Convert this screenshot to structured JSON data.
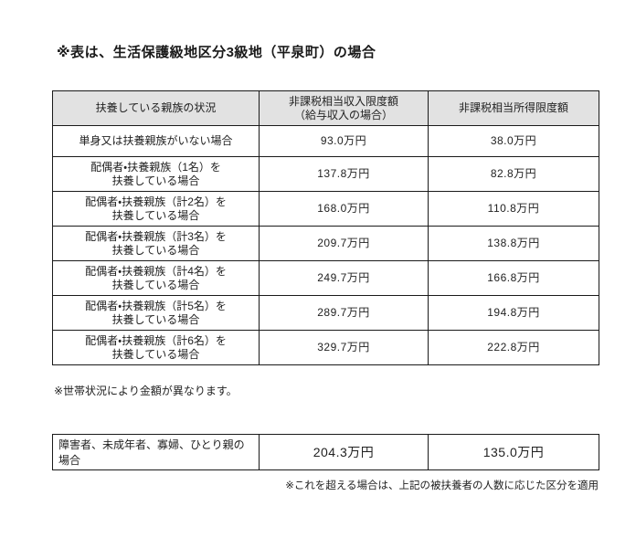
{
  "page": {
    "title": "※表は、生活保護級地区分3級地（平泉町）の場合",
    "note_household": "※世帯状況により金額が異なります。",
    "note_exceed": "※これを超える場合は、上記の被扶養者の人数に応じた区分を適用"
  },
  "colors": {
    "header_bg": "#e2e2e2",
    "border": "#1a1a1a",
    "text": "#222222",
    "background": "#ffffff"
  },
  "main_table": {
    "headers": [
      "扶養している親族の状況",
      "非課税相当収入限度額\n（給与収入の場合）",
      "非課税相当所得限度額"
    ],
    "rows": [
      {
        "situation": "単身又は扶養親族がいない場合",
        "income_limit": "93.0万円",
        "earnings_limit": "38.0万円"
      },
      {
        "situation": "配偶者・扶養親族（1名）を\n扶養している場合",
        "income_limit": "137.8万円",
        "earnings_limit": "82.8万円"
      },
      {
        "situation": "配偶者・扶養親族（計2名）を\n扶養している場合",
        "income_limit": "168.0万円",
        "earnings_limit": "110.8万円"
      },
      {
        "situation": "配偶者・扶養親族（計3名）を\n扶養している場合",
        "income_limit": "209.7万円",
        "earnings_limit": "138.8万円"
      },
      {
        "situation": "配偶者・扶養親族（計4名）を\n扶養している場合",
        "income_limit": "249.7万円",
        "earnings_limit": "166.8万円"
      },
      {
        "situation": "配偶者・扶養親族（計5名）を\n扶養している場合",
        "income_limit": "289.7万円",
        "earnings_limit": "194.8万円"
      },
      {
        "situation": "配偶者・扶養親族（計6名）を\n扶養している場合",
        "income_limit": "329.7万円",
        "earnings_limit": "222.8万円"
      }
    ]
  },
  "special_table": {
    "row": {
      "situation": "障害者、未成年者、寡婦、ひとり親の場合",
      "income_limit": "204.3万円",
      "earnings_limit": "135.0万円"
    }
  }
}
